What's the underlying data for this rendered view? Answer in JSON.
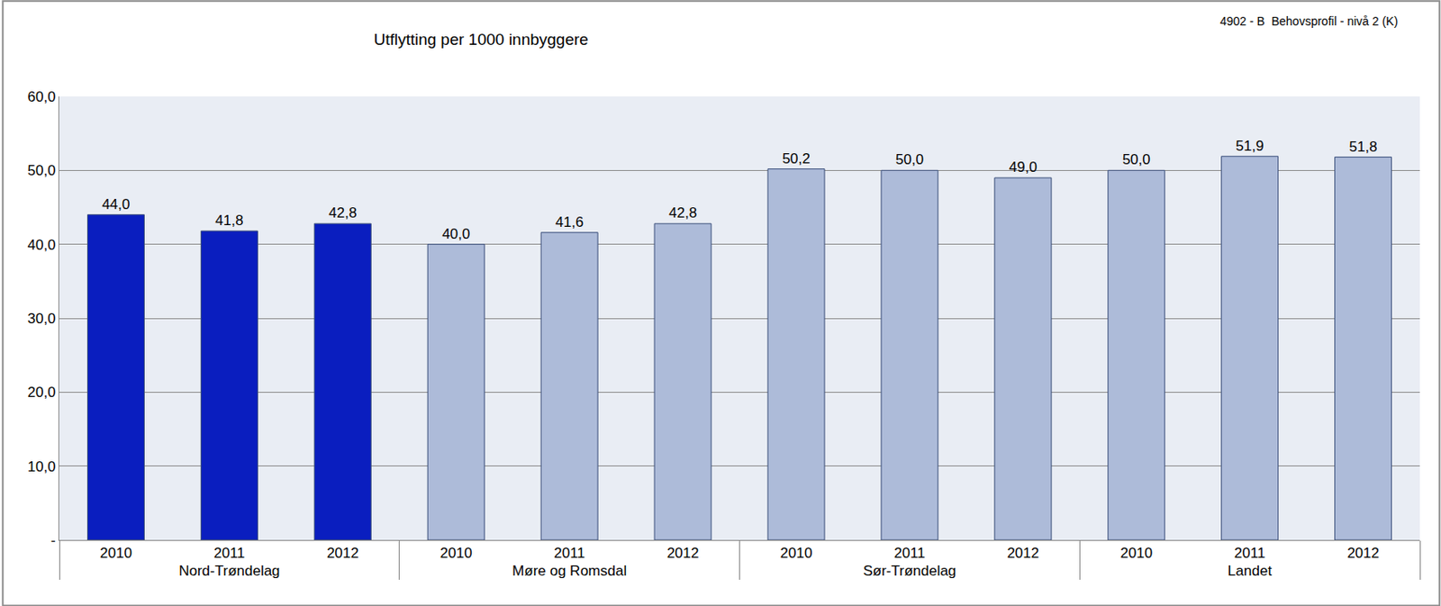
{
  "chart_data": {
    "type": "bar",
    "title": "Utflytting per 1000 innbyggere",
    "annotations": [
      "4902 - B  Behovsprofil - nivå 2 (K)"
    ],
    "group_labels": [
      "Nord-Trøndelag",
      "Nord-Trøndelag",
      "Nord-Trøndelag",
      "Møre og Romsdal",
      "Møre og Romsdal",
      "Møre og Romsdal",
      "Sør-Trøndelag",
      "Sør-Trøndelag",
      "Sør-Trøndelag",
      "Landet",
      "Landet",
      "Landet"
    ],
    "categories": [
      "2010",
      "2011",
      "2012",
      "2010",
      "2011",
      "2012",
      "2010",
      "2011",
      "2012",
      "2010",
      "2011",
      "2012"
    ],
    "values": [
      44.0,
      41.8,
      42.8,
      40.0,
      41.6,
      42.8,
      50.2,
      50.0,
      49.0,
      50.0,
      51.9,
      51.8
    ],
    "value_labels": [
      "44,0",
      "41,8",
      "42,8",
      "40,0",
      "41,6",
      "42,8",
      "50,2",
      "50,0",
      "49,0",
      "50,0",
      "51,9",
      "51,8"
    ],
    "colors": [
      "#0a1ebf",
      "#0a1ebf",
      "#0a1ebf",
      "#adbbd9",
      "#adbbd9",
      "#adbbd9",
      "#adbbd9",
      "#adbbd9",
      "#adbbd9",
      "#adbbd9",
      "#adbbd9",
      "#adbbd9"
    ],
    "ylim": [
      0,
      60
    ],
    "yticks": [
      {
        "value": 0,
        "label": "-"
      },
      {
        "value": 10,
        "label": "10,0"
      },
      {
        "value": 20,
        "label": "20,0"
      },
      {
        "value": 30,
        "label": "30,0"
      },
      {
        "value": 40,
        "label": "40,0"
      },
      {
        "value": 50,
        "label": "50,0"
      },
      {
        "value": 60,
        "label": "60,0"
      }
    ],
    "grid": true,
    "data_labels": true
  }
}
